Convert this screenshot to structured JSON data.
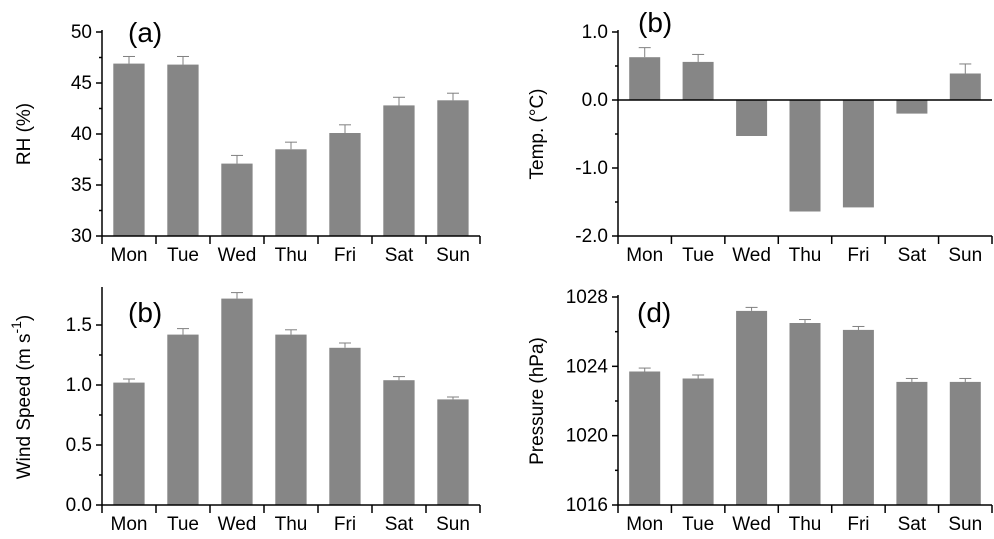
{
  "figure": {
    "background": "#ffffff",
    "bar_color": "#868686",
    "error_bar_color": "#808080"
  },
  "chart_data": [
    {
      "id": "a",
      "type": "bar",
      "panel_label": "(a)",
      "categories": [
        "Mon",
        "Tue",
        "Wed",
        "Thu",
        "Fri",
        "Sat",
        "Sun"
      ],
      "values": [
        46.9,
        46.8,
        37.1,
        38.5,
        40.1,
        42.8,
        43.3
      ],
      "errors": [
        0.7,
        0.8,
        0.8,
        0.7,
        0.8,
        0.8,
        0.7
      ],
      "ylabel": "RH (%)",
      "ylim": [
        30,
        50
      ],
      "yticks": [
        "30",
        "35",
        "40",
        "45",
        "50"
      ],
      "grid": false
    },
    {
      "id": "b_temp",
      "type": "bar",
      "panel_label": "(b)",
      "categories": [
        "Mon",
        "Tue",
        "Wed",
        "Thu",
        "Fri",
        "Sat",
        "Sun"
      ],
      "values": [
        0.63,
        0.56,
        -0.53,
        -1.64,
        -1.58,
        -0.2,
        0.39
      ],
      "errors": [
        0.14,
        0.11,
        0,
        0,
        0,
        0,
        0.14
      ],
      "ylabel": "Temp. (°C)",
      "ylim": [
        -2.0,
        1.0
      ],
      "yticks": [
        "-2.0",
        "-1.0",
        "0.0",
        "1.0"
      ],
      "baseline": 0,
      "grid": false
    },
    {
      "id": "b_wind",
      "type": "bar",
      "panel_label": "(b)",
      "categories": [
        "Mon",
        "Tue",
        "Wed",
        "Thu",
        "Fri",
        "Sat",
        "Sun"
      ],
      "values": [
        1.02,
        1.42,
        1.72,
        1.42,
        1.31,
        1.04,
        0.88
      ],
      "errors": [
        0.03,
        0.05,
        0.05,
        0.04,
        0.04,
        0.03,
        0.02
      ],
      "ylabel": "Wind Speed (m s",
      "ylabel_superscript": "-1",
      "ylabel_close": ")",
      "ylim": [
        0.0,
        1.8
      ],
      "yticks": [
        "0.0",
        "0.5",
        "1.0",
        "1.5"
      ],
      "grid": false
    },
    {
      "id": "d",
      "type": "bar",
      "panel_label": "(d)",
      "categories": [
        "Mon",
        "Tue",
        "Wed",
        "Thu",
        "Fri",
        "Sat",
        "Sun"
      ],
      "values": [
        1023.7,
        1023.3,
        1027.2,
        1026.5,
        1026.1,
        1023.1,
        1023.1
      ],
      "errors": [
        0.2,
        0.2,
        0.2,
        0.2,
        0.2,
        0.2,
        0.2
      ],
      "ylabel": "Pressure (hPa)",
      "ylim": [
        1016,
        1028
      ],
      "yticks": [
        "1016",
        "1020",
        "1024",
        "1028"
      ],
      "grid": false
    }
  ]
}
